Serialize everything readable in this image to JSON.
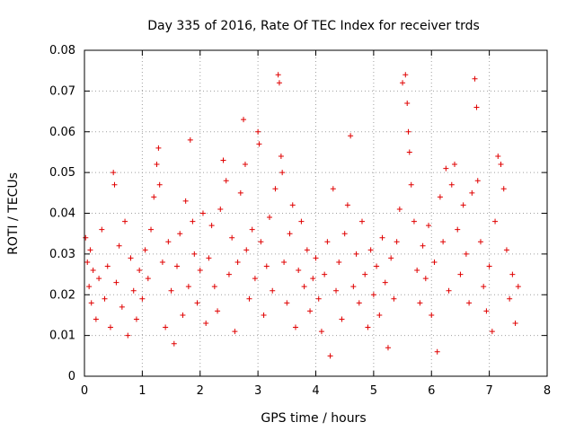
{
  "chart_data": {
    "type": "scatter",
    "title": "Day 335 of 2016, Rate Of TEC Index for receiver trds",
    "xlabel": "GPS time / hours",
    "ylabel": "ROTI / TECUs",
    "xlim": [
      0,
      8
    ],
    "ylim": [
      0,
      0.08
    ],
    "x_ticks": [
      "0",
      "1",
      "2",
      "3",
      "4",
      "5",
      "6",
      "7",
      "8"
    ],
    "y_ticks": [
      "0",
      "0.01",
      "0.02",
      "0.03",
      "0.04",
      "0.05",
      "0.06",
      "0.07",
      "0.08"
    ],
    "grid": true,
    "marker": "+",
    "color": "#e00000",
    "series": [
      {
        "name": "ROTI",
        "points": [
          [
            0.02,
            0.034
          ],
          [
            0.05,
            0.028
          ],
          [
            0.08,
            0.022
          ],
          [
            0.1,
            0.031
          ],
          [
            0.12,
            0.018
          ],
          [
            0.15,
            0.026
          ],
          [
            0.2,
            0.014
          ],
          [
            0.25,
            0.024
          ],
          [
            0.3,
            0.036
          ],
          [
            0.35,
            0.019
          ],
          [
            0.4,
            0.027
          ],
          [
            0.45,
            0.012
          ],
          [
            0.5,
            0.05
          ],
          [
            0.52,
            0.047
          ],
          [
            0.55,
            0.023
          ],
          [
            0.6,
            0.032
          ],
          [
            0.65,
            0.017
          ],
          [
            0.7,
            0.038
          ],
          [
            0.75,
            0.01
          ],
          [
            0.8,
            0.029
          ],
          [
            0.85,
            0.021
          ],
          [
            0.9,
            0.014
          ],
          [
            0.95,
            0.026
          ],
          [
            1.0,
            0.019
          ],
          [
            1.05,
            0.031
          ],
          [
            1.1,
            0.024
          ],
          [
            1.15,
            0.036
          ],
          [
            1.2,
            0.044
          ],
          [
            1.25,
            0.052
          ],
          [
            1.28,
            0.056
          ],
          [
            1.3,
            0.047
          ],
          [
            1.35,
            0.028
          ],
          [
            1.4,
            0.012
          ],
          [
            1.45,
            0.033
          ],
          [
            1.5,
            0.021
          ],
          [
            1.55,
            0.008
          ],
          [
            1.6,
            0.027
          ],
          [
            1.65,
            0.035
          ],
          [
            1.7,
            0.015
          ],
          [
            1.75,
            0.043
          ],
          [
            1.8,
            0.022
          ],
          [
            1.83,
            0.058
          ],
          [
            1.87,
            0.038
          ],
          [
            1.9,
            0.03
          ],
          [
            1.95,
            0.018
          ],
          [
            2.0,
            0.026
          ],
          [
            2.05,
            0.04
          ],
          [
            2.1,
            0.013
          ],
          [
            2.15,
            0.029
          ],
          [
            2.2,
            0.037
          ],
          [
            2.25,
            0.022
          ],
          [
            2.3,
            0.016
          ],
          [
            2.35,
            0.041
          ],
          [
            2.4,
            0.053
          ],
          [
            2.45,
            0.048
          ],
          [
            2.5,
            0.025
          ],
          [
            2.55,
            0.034
          ],
          [
            2.6,
            0.011
          ],
          [
            2.65,
            0.028
          ],
          [
            2.7,
            0.045
          ],
          [
            2.75,
            0.063
          ],
          [
            2.78,
            0.052
          ],
          [
            2.8,
            0.031
          ],
          [
            2.85,
            0.019
          ],
          [
            2.9,
            0.036
          ],
          [
            2.95,
            0.024
          ],
          [
            3.0,
            0.06
          ],
          [
            3.02,
            0.057
          ],
          [
            3.05,
            0.033
          ],
          [
            3.1,
            0.015
          ],
          [
            3.15,
            0.027
          ],
          [
            3.2,
            0.039
          ],
          [
            3.25,
            0.021
          ],
          [
            3.3,
            0.046
          ],
          [
            3.35,
            0.074
          ],
          [
            3.37,
            0.072
          ],
          [
            3.4,
            0.054
          ],
          [
            3.42,
            0.05
          ],
          [
            3.45,
            0.028
          ],
          [
            3.5,
            0.018
          ],
          [
            3.55,
            0.035
          ],
          [
            3.6,
            0.042
          ],
          [
            3.65,
            0.012
          ],
          [
            3.7,
            0.026
          ],
          [
            3.75,
            0.038
          ],
          [
            3.8,
            0.022
          ],
          [
            3.85,
            0.031
          ],
          [
            3.9,
            0.016
          ],
          [
            3.95,
            0.024
          ],
          [
            4.0,
            0.029
          ],
          [
            4.05,
            0.019
          ],
          [
            4.1,
            0.011
          ],
          [
            4.15,
            0.025
          ],
          [
            4.2,
            0.033
          ],
          [
            4.25,
            0.005
          ],
          [
            4.3,
            0.046
          ],
          [
            4.35,
            0.021
          ],
          [
            4.4,
            0.028
          ],
          [
            4.45,
            0.014
          ],
          [
            4.5,
            0.035
          ],
          [
            4.55,
            0.042
          ],
          [
            4.6,
            0.059
          ],
          [
            4.65,
            0.022
          ],
          [
            4.7,
            0.03
          ],
          [
            4.75,
            0.018
          ],
          [
            4.8,
            0.038
          ],
          [
            4.85,
            0.025
          ],
          [
            4.9,
            0.012
          ],
          [
            4.95,
            0.031
          ],
          [
            5.0,
            0.02
          ],
          [
            5.05,
            0.027
          ],
          [
            5.1,
            0.015
          ],
          [
            5.15,
            0.034
          ],
          [
            5.2,
            0.023
          ],
          [
            5.25,
            0.007
          ],
          [
            5.3,
            0.029
          ],
          [
            5.35,
            0.019
          ],
          [
            5.4,
            0.033
          ],
          [
            5.45,
            0.041
          ],
          [
            5.5,
            0.072
          ],
          [
            5.55,
            0.074
          ],
          [
            5.58,
            0.067
          ],
          [
            5.6,
            0.06
          ],
          [
            5.62,
            0.055
          ],
          [
            5.65,
            0.047
          ],
          [
            5.7,
            0.038
          ],
          [
            5.75,
            0.026
          ],
          [
            5.8,
            0.018
          ],
          [
            5.85,
            0.032
          ],
          [
            5.9,
            0.024
          ],
          [
            5.95,
            0.037
          ],
          [
            6.0,
            0.015
          ],
          [
            6.05,
            0.028
          ],
          [
            6.1,
            0.006
          ],
          [
            6.15,
            0.044
          ],
          [
            6.2,
            0.033
          ],
          [
            6.25,
            0.051
          ],
          [
            6.3,
            0.021
          ],
          [
            6.35,
            0.047
          ],
          [
            6.4,
            0.052
          ],
          [
            6.45,
            0.036
          ],
          [
            6.5,
            0.025
          ],
          [
            6.55,
            0.042
          ],
          [
            6.6,
            0.03
          ],
          [
            6.65,
            0.018
          ],
          [
            6.7,
            0.045
          ],
          [
            6.75,
            0.073
          ],
          [
            6.78,
            0.066
          ],
          [
            6.8,
            0.048
          ],
          [
            6.85,
            0.033
          ],
          [
            6.9,
            0.022
          ],
          [
            6.95,
            0.016
          ],
          [
            7.0,
            0.027
          ],
          [
            7.05,
            0.011
          ],
          [
            7.1,
            0.038
          ],
          [
            7.15,
            0.054
          ],
          [
            7.2,
            0.052
          ],
          [
            7.25,
            0.046
          ],
          [
            7.3,
            0.031
          ],
          [
            7.35,
            0.019
          ],
          [
            7.4,
            0.025
          ],
          [
            7.45,
            0.013
          ],
          [
            7.5,
            0.022
          ]
        ]
      }
    ]
  }
}
